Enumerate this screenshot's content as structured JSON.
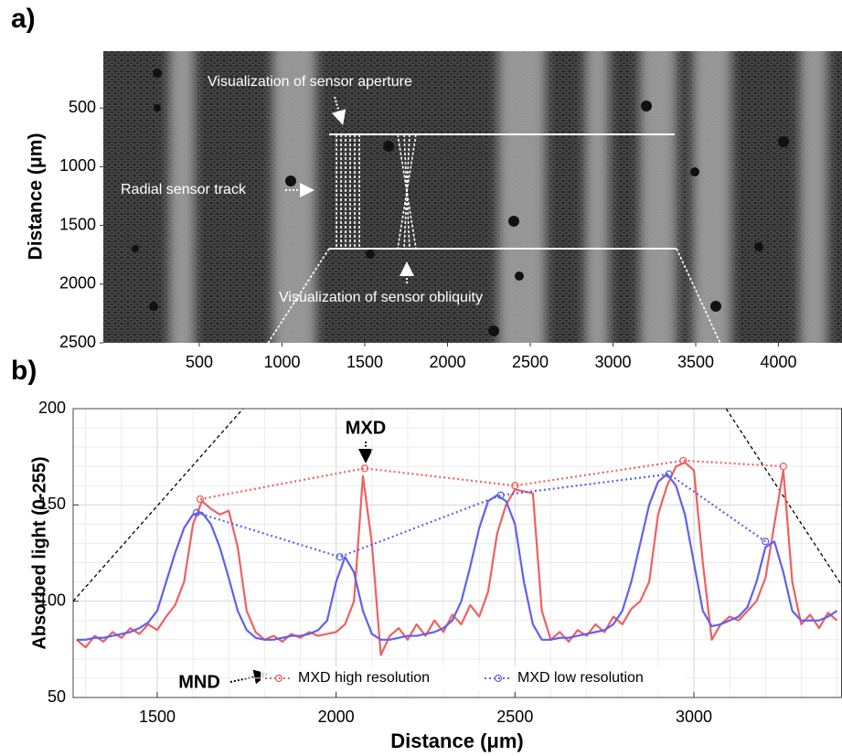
{
  "chart_data": [
    {
      "type": "image",
      "panel_label": "a)",
      "ylabel": "Distance (μm)",
      "xlim": [
        -80,
        4384
      ],
      "ylim": [
        0,
        2500
      ],
      "xticks": [
        500,
        1000,
        1500,
        2000,
        2500,
        3000,
        3500,
        4000
      ],
      "yticks": [
        500,
        1000,
        1500,
        2000,
        2500
      ],
      "annotations": [
        "Visualization of sensor aperture",
        "Radial sensor track",
        "Visualization of sensor obliquity"
      ]
    },
    {
      "type": "line",
      "panel_label": "b)",
      "xlabel": "Distance (μm)",
      "ylabel": "Absorbed light (0-255)",
      "xlim": [
        1265,
        3414
      ],
      "ylim": [
        50,
        200
      ],
      "xticks": [
        1500,
        2000,
        2500,
        3000
      ],
      "yticks": [
        50,
        100,
        150,
        200
      ],
      "grid": true,
      "minor_grid": true,
      "legend": "bottom",
      "annotations": [
        "MXD",
        "MND"
      ],
      "series": [
        {
          "color": "#f06060",
          "style": "solid",
          "x": [
            1275,
            1300,
            1325,
            1350,
            1375,
            1400,
            1425,
            1450,
            1475,
            1500,
            1525,
            1550,
            1575,
            1600,
            1625,
            1650,
            1675,
            1700,
            1725,
            1750,
            1775,
            1800,
            1825,
            1850,
            1875,
            1900,
            1925,
            1950,
            1975,
            2000,
            2025,
            2050,
            2075,
            2100,
            2125,
            2150,
            2175,
            2200,
            2225,
            2250,
            2275,
            2300,
            2325,
            2350,
            2375,
            2400,
            2425,
            2450,
            2475,
            2500,
            2525,
            2550,
            2575,
            2600,
            2625,
            2650,
            2675,
            2700,
            2725,
            2750,
            2775,
            2800,
            2825,
            2850,
            2875,
            2900,
            2925,
            2950,
            2975,
            3000,
            3025,
            3050,
            3075,
            3100,
            3125,
            3150,
            3175,
            3200,
            3225,
            3250,
            3275,
            3300,
            3325,
            3350,
            3375,
            3400
          ],
          "values": [
            80,
            76,
            82,
            79,
            84,
            81,
            86,
            83,
            88,
            85,
            92,
            98,
            110,
            140,
            152,
            148,
            145,
            147,
            128,
            95,
            84,
            80,
            82,
            79,
            83,
            81,
            84,
            82,
            83,
            84,
            88,
            100,
            165,
            130,
            72,
            82,
            86,
            80,
            88,
            82,
            90,
            84,
            93,
            88,
            98,
            92,
            105,
            135,
            150,
            158,
            157,
            156,
            95,
            80,
            84,
            79,
            85,
            82,
            88,
            84,
            92,
            88,
            96,
            100,
            110,
            145,
            160,
            170,
            172,
            168,
            120,
            80,
            88,
            92,
            90,
            95,
            100,
            112,
            140,
            168,
            110,
            88,
            93,
            86,
            94,
            90
          ]
        },
        {
          "color": "#6060f0",
          "style": "solid",
          "x": [
            1275,
            1300,
            1325,
            1350,
            1375,
            1400,
            1425,
            1450,
            1475,
            1500,
            1525,
            1550,
            1575,
            1600,
            1625,
            1650,
            1675,
            1700,
            1725,
            1750,
            1775,
            1800,
            1825,
            1850,
            1875,
            1900,
            1925,
            1950,
            1975,
            2000,
            2025,
            2050,
            2075,
            2100,
            2125,
            2150,
            2175,
            2200,
            2225,
            2250,
            2275,
            2300,
            2325,
            2350,
            2375,
            2400,
            2425,
            2450,
            2475,
            2500,
            2525,
            2550,
            2575,
            2600,
            2625,
            2650,
            2675,
            2700,
            2725,
            2750,
            2775,
            2800,
            2825,
            2850,
            2875,
            2900,
            2925,
            2950,
            2975,
            3000,
            3025,
            3050,
            3075,
            3100,
            3125,
            3150,
            3175,
            3200,
            3225,
            3250,
            3275,
            3300,
            3325,
            3350,
            3375,
            3400
          ],
          "values": [
            80,
            80,
            81,
            81,
            82,
            83,
            84,
            86,
            89,
            95,
            110,
            125,
            138,
            145,
            146,
            140,
            128,
            112,
            95,
            85,
            81,
            80,
            80,
            81,
            82,
            82,
            83,
            85,
            90,
            110,
            123,
            115,
            95,
            83,
            80,
            80,
            81,
            82,
            82,
            83,
            84,
            86,
            90,
            100,
            118,
            138,
            152,
            155,
            152,
            140,
            110,
            88,
            80,
            80,
            81,
            81,
            82,
            83,
            84,
            85,
            88,
            95,
            110,
            130,
            150,
            162,
            166,
            160,
            145,
            120,
            95,
            87,
            88,
            90,
            92,
            97,
            110,
            128,
            131,
            115,
            95,
            90,
            90,
            90,
            92,
            95
          ]
        },
        {
          "name": "MXD high resolution",
          "color": "#f06060",
          "style": "dotted",
          "markers": true,
          "x": [
            1620,
            2080,
            2500,
            2970,
            3250
          ],
          "values": [
            153,
            169,
            160,
            173,
            170
          ]
        },
        {
          "name": "MXD low resolution",
          "color": "#6060f0",
          "style": "dotted",
          "markers": true,
          "x": [
            1610,
            2010,
            2460,
            2930,
            3200
          ],
          "values": [
            146,
            123,
            155,
            166,
            131
          ]
        }
      ],
      "guides": [
        {
          "color": "#000000",
          "x": [
            1265,
            1740
          ],
          "values": [
            100,
            200
          ]
        },
        {
          "color": "#000000",
          "x": [
            3090,
            3414
          ],
          "values": [
            200,
            108
          ]
        }
      ]
    }
  ]
}
